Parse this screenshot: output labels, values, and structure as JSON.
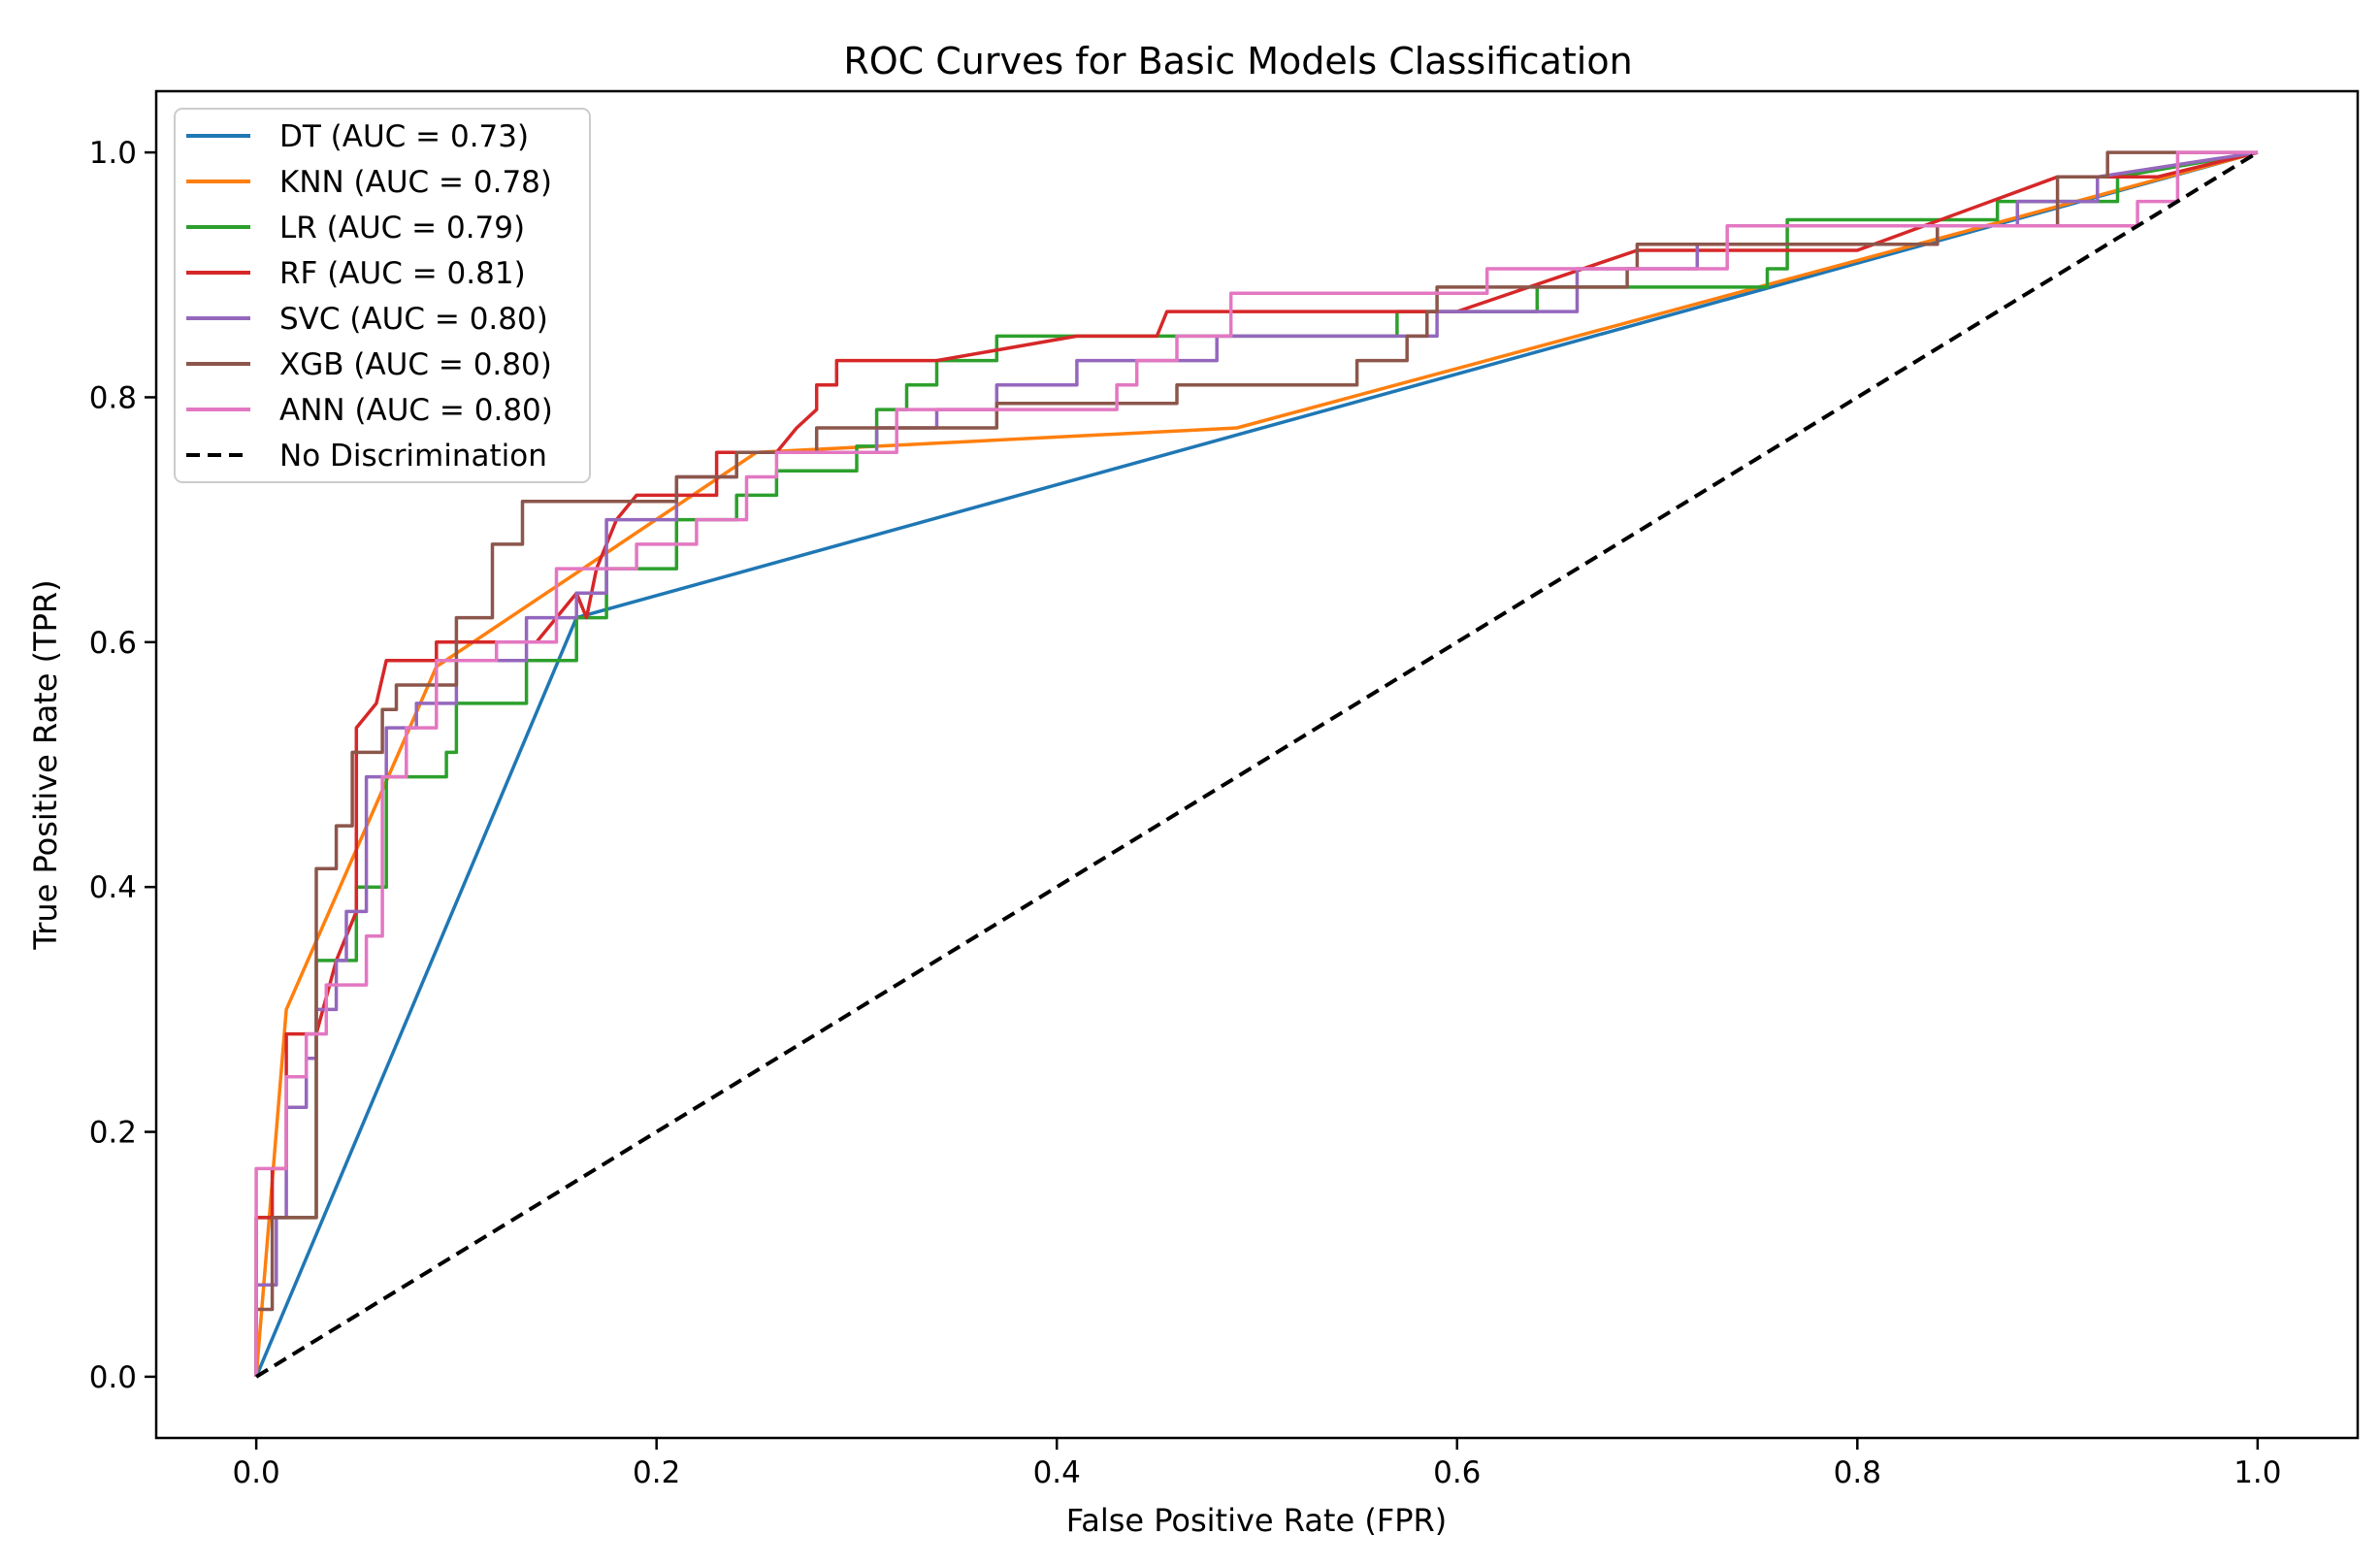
{
  "chart_data": {
    "type": "line",
    "title": "ROC Curves for Basic Models Classification",
    "xlabel": "False Positive Rate (FPR)",
    "ylabel": "True Positive Rate (TPR)",
    "xlim": [
      -0.05,
      1.05
    ],
    "ylim": [
      -0.05,
      1.05
    ],
    "xticks": [
      0.0,
      0.2,
      0.4,
      0.6,
      0.8,
      1.0
    ],
    "yticks": [
      0.0,
      0.2,
      0.4,
      0.6,
      0.8,
      1.0
    ],
    "xtick_labels": [
      "0.0",
      "0.2",
      "0.4",
      "0.6",
      "0.8",
      "1.0"
    ],
    "ytick_labels": [
      "0.0",
      "0.2",
      "0.4",
      "0.6",
      "0.8",
      "1.0"
    ],
    "grid": false,
    "legend_position": "upper-left",
    "series": [
      {
        "name": "DT",
        "label": "DT (AUC = 0.73)",
        "color": "#1f77b4",
        "dash": "solid",
        "points": [
          [
            0,
            0
          ],
          [
            0.16,
            0.62
          ],
          [
            1,
            1
          ]
        ]
      },
      {
        "name": "KNN",
        "label": "KNN (AUC = 0.78)",
        "color": "#ff7f0e",
        "dash": "solid",
        "points": [
          [
            0,
            0
          ],
          [
            0.015,
            0.3
          ],
          [
            0.09,
            0.58
          ],
          [
            0.25,
            0.755
          ],
          [
            0.49,
            0.775
          ],
          [
            1,
            1
          ]
        ]
      },
      {
        "name": "LR",
        "label": "LR (AUC = 0.79)",
        "color": "#2ca02c",
        "dash": "solid",
        "points": [
          [
            0,
            0
          ],
          [
            0,
            0.13
          ],
          [
            0.03,
            0.13
          ],
          [
            0.03,
            0.34
          ],
          [
            0.05,
            0.34
          ],
          [
            0.05,
            0.4
          ],
          [
            0.065,
            0.4
          ],
          [
            0.065,
            0.49
          ],
          [
            0.095,
            0.49
          ],
          [
            0.095,
            0.51
          ],
          [
            0.1,
            0.51
          ],
          [
            0.1,
            0.55
          ],
          [
            0.135,
            0.55
          ],
          [
            0.135,
            0.585
          ],
          [
            0.16,
            0.585
          ],
          [
            0.16,
            0.62
          ],
          [
            0.175,
            0.62
          ],
          [
            0.175,
            0.66
          ],
          [
            0.21,
            0.66
          ],
          [
            0.21,
            0.7
          ],
          [
            0.24,
            0.7
          ],
          [
            0.24,
            0.72
          ],
          [
            0.26,
            0.72
          ],
          [
            0.26,
            0.74
          ],
          [
            0.3,
            0.74
          ],
          [
            0.3,
            0.76
          ],
          [
            0.31,
            0.76
          ],
          [
            0.31,
            0.79
          ],
          [
            0.325,
            0.79
          ],
          [
            0.325,
            0.81
          ],
          [
            0.34,
            0.81
          ],
          [
            0.34,
            0.83
          ],
          [
            0.37,
            0.83
          ],
          [
            0.37,
            0.85
          ],
          [
            0.57,
            0.85
          ],
          [
            0.57,
            0.87
          ],
          [
            0.64,
            0.87
          ],
          [
            0.64,
            0.89
          ],
          [
            0.755,
            0.89
          ],
          [
            0.755,
            0.905
          ],
          [
            0.765,
            0.905
          ],
          [
            0.765,
            0.945
          ],
          [
            0.87,
            0.945
          ],
          [
            0.87,
            0.96
          ],
          [
            0.93,
            0.96
          ],
          [
            0.93,
            0.98
          ],
          [
            1,
            1
          ]
        ]
      },
      {
        "name": "RF",
        "label": "RF (AUC = 0.81)",
        "color": "#d62728",
        "dash": "solid",
        "points": [
          [
            0,
            0
          ],
          [
            0,
            0.13
          ],
          [
            0.008,
            0.13
          ],
          [
            0.008,
            0.17
          ],
          [
            0.015,
            0.17
          ],
          [
            0.015,
            0.28
          ],
          [
            0.03,
            0.28
          ],
          [
            0.04,
            0.34
          ],
          [
            0.05,
            0.38
          ],
          [
            0.05,
            0.53
          ],
          [
            0.06,
            0.55
          ],
          [
            0.065,
            0.585
          ],
          [
            0.09,
            0.585
          ],
          [
            0.09,
            0.6
          ],
          [
            0.1,
            0.6
          ],
          [
            0.12,
            0.6
          ],
          [
            0.14,
            0.6
          ],
          [
            0.16,
            0.64
          ],
          [
            0.165,
            0.62
          ],
          [
            0.17,
            0.66
          ],
          [
            0.18,
            0.7
          ],
          [
            0.19,
            0.72
          ],
          [
            0.23,
            0.72
          ],
          [
            0.23,
            0.755
          ],
          [
            0.26,
            0.755
          ],
          [
            0.27,
            0.775
          ],
          [
            0.28,
            0.79
          ],
          [
            0.28,
            0.81
          ],
          [
            0.29,
            0.81
          ],
          [
            0.29,
            0.83
          ],
          [
            0.33,
            0.83
          ],
          [
            0.34,
            0.83
          ],
          [
            0.41,
            0.85
          ],
          [
            0.44,
            0.85
          ],
          [
            0.45,
            0.85
          ],
          [
            0.455,
            0.87
          ],
          [
            0.6,
            0.87
          ],
          [
            0.69,
            0.92
          ],
          [
            0.73,
            0.92
          ],
          [
            0.8,
            0.92
          ],
          [
            0.9,
            0.98
          ],
          [
            0.93,
            0.98
          ],
          [
            0.95,
            0.98
          ],
          [
            1,
            1
          ]
        ]
      },
      {
        "name": "SVC",
        "label": "SVC (AUC = 0.80)",
        "color": "#9467bd",
        "dash": "solid",
        "points": [
          [
            0,
            0
          ],
          [
            0,
            0.075
          ],
          [
            0.01,
            0.075
          ],
          [
            0.01,
            0.13
          ],
          [
            0.015,
            0.13
          ],
          [
            0.015,
            0.22
          ],
          [
            0.025,
            0.22
          ],
          [
            0.025,
            0.26
          ],
          [
            0.03,
            0.26
          ],
          [
            0.03,
            0.3
          ],
          [
            0.04,
            0.3
          ],
          [
            0.04,
            0.34
          ],
          [
            0.045,
            0.34
          ],
          [
            0.045,
            0.38
          ],
          [
            0.055,
            0.38
          ],
          [
            0.055,
            0.49
          ],
          [
            0.065,
            0.49
          ],
          [
            0.065,
            0.53
          ],
          [
            0.08,
            0.53
          ],
          [
            0.08,
            0.55
          ],
          [
            0.1,
            0.55
          ],
          [
            0.1,
            0.585
          ],
          [
            0.135,
            0.585
          ],
          [
            0.135,
            0.62
          ],
          [
            0.16,
            0.62
          ],
          [
            0.16,
            0.64
          ],
          [
            0.175,
            0.64
          ],
          [
            0.175,
            0.7
          ],
          [
            0.21,
            0.7
          ],
          [
            0.21,
            0.735
          ],
          [
            0.24,
            0.735
          ],
          [
            0.24,
            0.755
          ],
          [
            0.31,
            0.755
          ],
          [
            0.31,
            0.775
          ],
          [
            0.34,
            0.775
          ],
          [
            0.34,
            0.79
          ],
          [
            0.37,
            0.79
          ],
          [
            0.37,
            0.81
          ],
          [
            0.41,
            0.81
          ],
          [
            0.41,
            0.83
          ],
          [
            0.48,
            0.83
          ],
          [
            0.48,
            0.85
          ],
          [
            0.59,
            0.85
          ],
          [
            0.59,
            0.87
          ],
          [
            0.66,
            0.87
          ],
          [
            0.66,
            0.905
          ],
          [
            0.72,
            0.905
          ],
          [
            0.72,
            0.925
          ],
          [
            0.84,
            0.925
          ],
          [
            0.84,
            0.94
          ],
          [
            0.88,
            0.94
          ],
          [
            0.88,
            0.96
          ],
          [
            0.92,
            0.96
          ],
          [
            0.92,
            0.98
          ],
          [
            1,
            1
          ]
        ]
      },
      {
        "name": "XGB",
        "label": "XGB (AUC = 0.80)",
        "color": "#8c564b",
        "dash": "solid",
        "points": [
          [
            0,
            0
          ],
          [
            0,
            0.055
          ],
          [
            0.008,
            0.055
          ],
          [
            0.008,
            0.13
          ],
          [
            0.03,
            0.13
          ],
          [
            0.03,
            0.415
          ],
          [
            0.04,
            0.415
          ],
          [
            0.04,
            0.45
          ],
          [
            0.048,
            0.45
          ],
          [
            0.048,
            0.51
          ],
          [
            0.063,
            0.51
          ],
          [
            0.063,
            0.545
          ],
          [
            0.07,
            0.545
          ],
          [
            0.07,
            0.565
          ],
          [
            0.1,
            0.565
          ],
          [
            0.1,
            0.62
          ],
          [
            0.118,
            0.62
          ],
          [
            0.118,
            0.68
          ],
          [
            0.133,
            0.68
          ],
          [
            0.133,
            0.715
          ],
          [
            0.21,
            0.715
          ],
          [
            0.21,
            0.735
          ],
          [
            0.24,
            0.735
          ],
          [
            0.24,
            0.755
          ],
          [
            0.28,
            0.755
          ],
          [
            0.28,
            0.775
          ],
          [
            0.37,
            0.775
          ],
          [
            0.37,
            0.795
          ],
          [
            0.46,
            0.795
          ],
          [
            0.46,
            0.81
          ],
          [
            0.55,
            0.81
          ],
          [
            0.55,
            0.83
          ],
          [
            0.575,
            0.83
          ],
          [
            0.575,
            0.85
          ],
          [
            0.585,
            0.85
          ],
          [
            0.585,
            0.87
          ],
          [
            0.59,
            0.87
          ],
          [
            0.59,
            0.89
          ],
          [
            0.685,
            0.89
          ],
          [
            0.685,
            0.905
          ],
          [
            0.69,
            0.905
          ],
          [
            0.69,
            0.925
          ],
          [
            0.84,
            0.925
          ],
          [
            0.84,
            0.94
          ],
          [
            0.9,
            0.94
          ],
          [
            0.9,
            0.98
          ],
          [
            0.925,
            0.98
          ],
          [
            0.925,
            1.0
          ],
          [
            1,
            1
          ]
        ]
      },
      {
        "name": "ANN",
        "label": "ANN (AUC = 0.80)",
        "color": "#e377c2",
        "dash": "solid",
        "points": [
          [
            0,
            0
          ],
          [
            0,
            0.17
          ],
          [
            0.015,
            0.17
          ],
          [
            0.015,
            0.245
          ],
          [
            0.025,
            0.245
          ],
          [
            0.025,
            0.28
          ],
          [
            0.035,
            0.28
          ],
          [
            0.035,
            0.32
          ],
          [
            0.055,
            0.32
          ],
          [
            0.055,
            0.36
          ],
          [
            0.063,
            0.36
          ],
          [
            0.063,
            0.49
          ],
          [
            0.075,
            0.49
          ],
          [
            0.075,
            0.53
          ],
          [
            0.09,
            0.53
          ],
          [
            0.09,
            0.585
          ],
          [
            0.12,
            0.585
          ],
          [
            0.12,
            0.6
          ],
          [
            0.15,
            0.6
          ],
          [
            0.15,
            0.66
          ],
          [
            0.19,
            0.66
          ],
          [
            0.19,
            0.68
          ],
          [
            0.22,
            0.68
          ],
          [
            0.22,
            0.7
          ],
          [
            0.245,
            0.7
          ],
          [
            0.245,
            0.735
          ],
          [
            0.26,
            0.735
          ],
          [
            0.26,
            0.755
          ],
          [
            0.32,
            0.755
          ],
          [
            0.32,
            0.79
          ],
          [
            0.43,
            0.79
          ],
          [
            0.43,
            0.81
          ],
          [
            0.44,
            0.81
          ],
          [
            0.44,
            0.83
          ],
          [
            0.46,
            0.83
          ],
          [
            0.46,
            0.85
          ],
          [
            0.487,
            0.85
          ],
          [
            0.487,
            0.885
          ],
          [
            0.615,
            0.885
          ],
          [
            0.615,
            0.905
          ],
          [
            0.735,
            0.905
          ],
          [
            0.735,
            0.94
          ],
          [
            0.94,
            0.94
          ],
          [
            0.94,
            0.96
          ],
          [
            0.96,
            0.96
          ],
          [
            0.96,
            1.0
          ],
          [
            1,
            1
          ]
        ]
      },
      {
        "name": "No Discrimination",
        "label": "No Discrimination",
        "color": "#000000",
        "dash": "dashed",
        "points": [
          [
            0,
            0
          ],
          [
            1,
            1
          ]
        ]
      }
    ]
  }
}
